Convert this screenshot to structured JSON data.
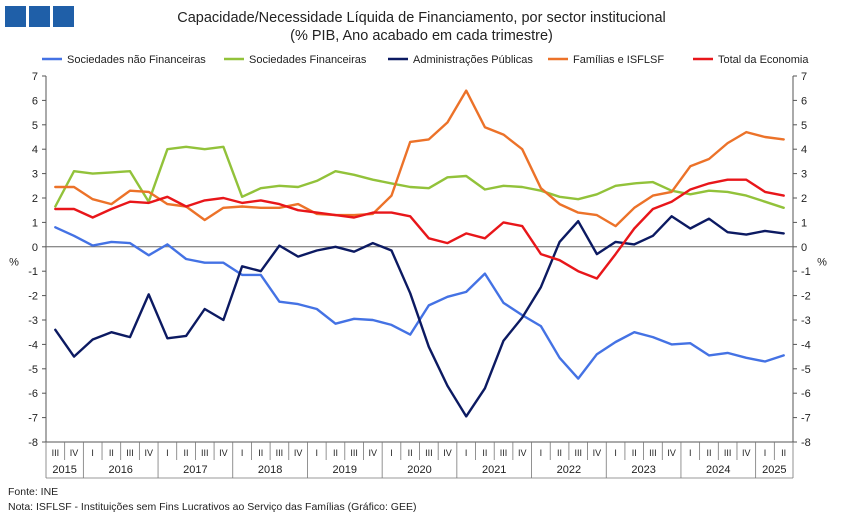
{
  "header": {
    "title": "Capacidade/Necessidade Líquida de Financiamento, por sector institucional",
    "subtitle": "(% PIB, Ano acabado em cada trimestre)"
  },
  "footer": {
    "source": "Fonte: INE",
    "note": "Nota: ISFLSF - Instituições sem Fins Lucrativos ao Serviço das Famílias (Gráfico: GEE)"
  },
  "chart_data": {
    "type": "line",
    "title": "Capacidade/Necessidade Líquida de Financiamento, por sector institucional",
    "subtitle": "(% PIB, Ano acabado em cada trimestre)",
    "ylabel_left": "%",
    "ylabel_right": "%",
    "ylim": [
      -8,
      7
    ],
    "yticks": [
      -8,
      -7,
      -6,
      -5,
      -4,
      -3,
      -2,
      -1,
      0,
      1,
      2,
      3,
      4,
      5,
      6,
      7
    ],
    "grid": false,
    "legend_position": "top",
    "x": [
      "III 2015",
      "IV 2015",
      "I 2016",
      "II 2016",
      "III 2016",
      "IV 2016",
      "I 2017",
      "II 2017",
      "III 2017",
      "IV 2017",
      "I 2018",
      "II 2018",
      "III 2018",
      "IV 2018",
      "I 2019",
      "II 2019",
      "III 2019",
      "IV 2019",
      "I 2020",
      "II 2020",
      "III 2020",
      "IV 2020",
      "I 2021",
      "II 2021",
      "III 2021",
      "IV 2021",
      "I 2022",
      "II 2022",
      "III 2022",
      "IV 2022",
      "I 2023",
      "II 2023",
      "III 2023",
      "IV 2023",
      "I 2024",
      "II 2024",
      "III 2024",
      "IV 2024",
      "I 2025",
      "II 2025"
    ],
    "quarter_labels": [
      "III",
      "IV",
      "I",
      "II",
      "III",
      "IV",
      "I",
      "II",
      "III",
      "IV",
      "I",
      "II",
      "III",
      "IV",
      "I",
      "II",
      "III",
      "IV",
      "I",
      "II",
      "III",
      "IV",
      "I",
      "II",
      "III",
      "IV",
      "I",
      "II",
      "III",
      "IV",
      "I",
      "II",
      "III",
      "IV",
      "I",
      "II",
      "III",
      "IV",
      "I",
      "II"
    ],
    "years": [
      {
        "label": "2015",
        "start": 0,
        "end": 1
      },
      {
        "label": "2016",
        "start": 2,
        "end": 5
      },
      {
        "label": "2017",
        "start": 6,
        "end": 9
      },
      {
        "label": "2018",
        "start": 10,
        "end": 13
      },
      {
        "label": "2019",
        "start": 14,
        "end": 17
      },
      {
        "label": "2020",
        "start": 18,
        "end": 21
      },
      {
        "label": "2021",
        "start": 22,
        "end": 25
      },
      {
        "label": "2022",
        "start": 26,
        "end": 29
      },
      {
        "label": "2023",
        "start": 30,
        "end": 33
      },
      {
        "label": "2024",
        "start": 34,
        "end": 37
      },
      {
        "label": "2025",
        "start": 38,
        "end": 39
      }
    ],
    "series": [
      {
        "name": "Sociedades não Financeiras",
        "color": "#4472e4",
        "values": [
          0.8,
          0.45,
          0.05,
          0.2,
          0.15,
          -0.35,
          0.1,
          -0.5,
          -0.65,
          -0.65,
          -1.15,
          -1.15,
          -2.25,
          -2.35,
          -2.55,
          -3.15,
          -2.95,
          -3.0,
          -3.2,
          -3.6,
          -2.4,
          -2.05,
          -1.85,
          -1.1,
          -2.3,
          -2.8,
          -3.25,
          -4.55,
          -5.4,
          -4.4,
          -3.9,
          -3.5,
          -3.7,
          -4.0,
          -3.95,
          -4.45,
          -4.35,
          -4.55,
          -4.7,
          -4.45
        ]
      },
      {
        "name": "Sociedades Financeiras",
        "color": "#92c23a",
        "values": [
          1.65,
          3.1,
          3.0,
          3.05,
          3.1,
          1.85,
          4.0,
          4.1,
          4.0,
          4.1,
          2.05,
          2.4,
          2.5,
          2.45,
          2.7,
          3.1,
          2.95,
          2.75,
          2.6,
          2.45,
          2.4,
          2.85,
          2.9,
          2.35,
          2.5,
          2.45,
          2.3,
          2.05,
          1.95,
          2.15,
          2.5,
          2.6,
          2.65,
          2.3,
          2.15,
          2.3,
          2.25,
          2.1,
          1.85,
          1.6
        ]
      },
      {
        "name": "Administrações Públicas",
        "color": "#0c1a62",
        "values": [
          -3.4,
          -4.5,
          -3.8,
          -3.5,
          -3.7,
          -1.95,
          -3.75,
          -3.65,
          -2.55,
          -3.0,
          -0.8,
          -1.0,
          0.05,
          -0.4,
          -0.15,
          0.0,
          -0.2,
          0.15,
          -0.15,
          -1.9,
          -4.1,
          -5.7,
          -6.95,
          -5.8,
          -3.85,
          -2.9,
          -1.65,
          0.2,
          1.05,
          -0.3,
          0.2,
          0.1,
          0.45,
          1.25,
          0.75,
          1.15,
          0.6,
          0.5,
          0.65,
          0.55
        ]
      },
      {
        "name": "Famílias e ISFLSF",
        "color": "#ec7229",
        "values": [
          2.45,
          2.45,
          1.95,
          1.75,
          2.3,
          2.25,
          1.75,
          1.65,
          1.1,
          1.6,
          1.65,
          1.6,
          1.6,
          1.75,
          1.35,
          1.3,
          1.3,
          1.35,
          2.1,
          4.3,
          4.4,
          5.1,
          6.4,
          4.9,
          4.6,
          4.0,
          2.4,
          1.75,
          1.4,
          1.3,
          0.85,
          1.6,
          2.1,
          2.25,
          3.3,
          3.6,
          4.25,
          4.7,
          4.5,
          4.4
        ]
      },
      {
        "name": "Total da Economia",
        "color": "#e8161a",
        "values": [
          1.55,
          1.55,
          1.2,
          1.55,
          1.85,
          1.8,
          2.05,
          1.65,
          1.9,
          2.0,
          1.8,
          1.9,
          1.75,
          1.5,
          1.4,
          1.3,
          1.2,
          1.4,
          1.4,
          1.25,
          0.35,
          0.15,
          0.55,
          0.35,
          1.0,
          0.85,
          -0.3,
          -0.55,
          -1.0,
          -1.3,
          -0.3,
          0.75,
          1.55,
          1.85,
          2.35,
          2.6,
          2.75,
          2.75,
          2.25,
          2.1
        ]
      }
    ]
  }
}
